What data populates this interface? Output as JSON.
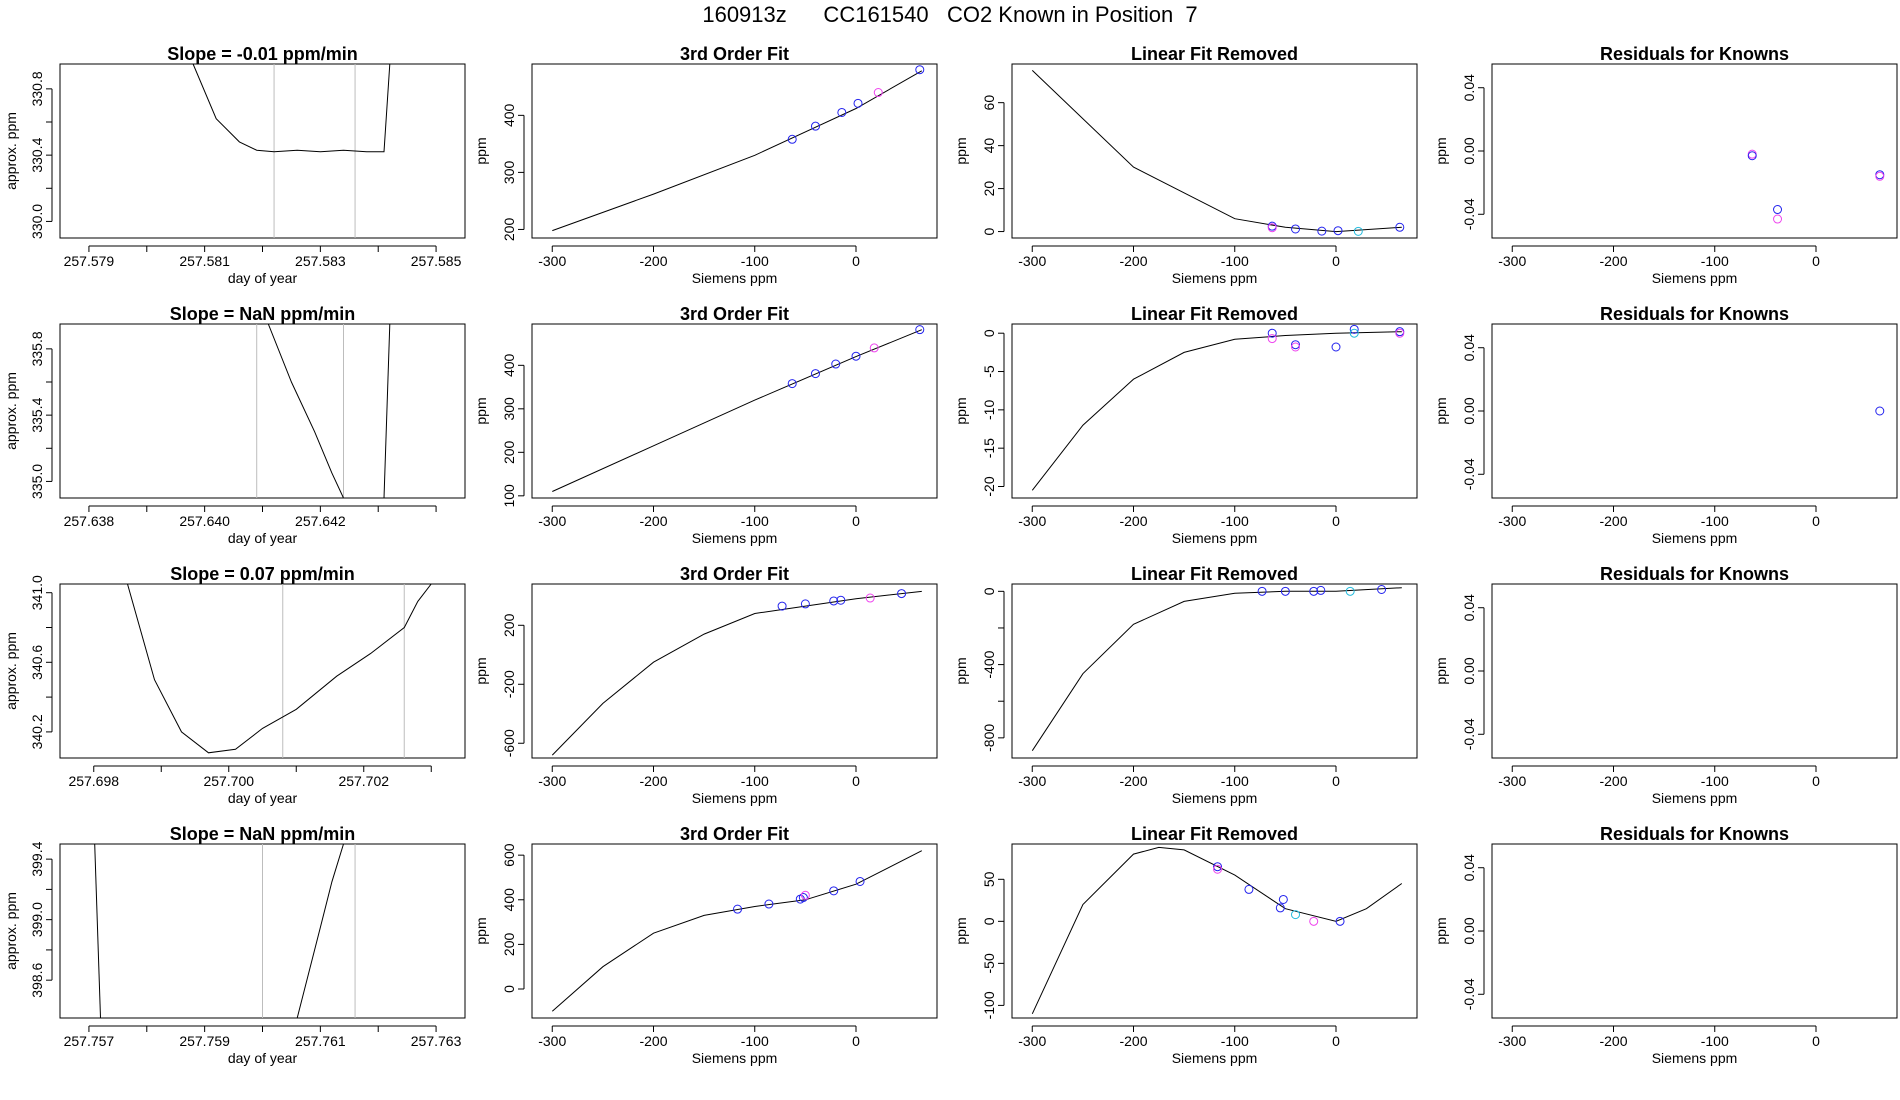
{
  "page": {
    "title": "160913z      CC161540   CO2 Known in Position  7"
  },
  "colors": {
    "axis": "#000000",
    "curve": "#000000",
    "vline": "#bdbdbd",
    "blue": "#2222ee",
    "magenta": "#ee44ee",
    "cyan": "#22bbdd"
  },
  "chart_data": [
    {
      "type": "line",
      "title": "Slope =  -0.01  ppm/min",
      "xlabel": "day of year",
      "ylabel": "approx. ppm",
      "xlim": [
        257.5785,
        257.5855
      ],
      "ylim": [
        329.9,
        330.95
      ],
      "xticks": [
        257.579,
        257.58,
        257.581,
        257.582,
        257.583,
        257.584,
        257.585
      ],
      "xtick_labels": [
        "257.579",
        "",
        "257.581",
        "",
        "257.583",
        "",
        "257.585"
      ],
      "yticks": [
        330.0,
        330.2,
        330.4,
        330.6,
        330.8
      ],
      "ytick_labels": [
        "330.0",
        "",
        "330.4",
        "",
        "330.8"
      ],
      "vlines": [
        257.5822,
        257.5836
      ],
      "x": [
        257.5808,
        257.5812,
        257.5816,
        257.5819,
        257.5822,
        257.5826,
        257.583,
        257.5834,
        257.5838,
        257.5841,
        257.5842
      ],
      "y": [
        330.95,
        330.62,
        330.48,
        330.43,
        330.42,
        330.43,
        330.42,
        330.43,
        330.42,
        330.42,
        330.95
      ],
      "points": []
    },
    {
      "type": "line",
      "title": "3rd Order Fit",
      "xlabel": "Siemens ppm",
      "ylabel": "ppm",
      "xlim": [
        -320,
        80
      ],
      "ylim": [
        185,
        490
      ],
      "xticks": [
        -300,
        -200,
        -100,
        0
      ],
      "xtick_labels": [
        "-300",
        "-200",
        "-100",
        "0"
      ],
      "yticks": [
        200,
        300,
        400
      ],
      "ytick_labels": [
        "200",
        "300",
        "400"
      ],
      "vlines": [],
      "x": [
        -300,
        -200,
        -100,
        0,
        65
      ],
      "y": [
        198,
        262,
        330,
        412,
        478
      ],
      "points": [
        {
          "x": -63,
          "y": 358,
          "c": "blue"
        },
        {
          "x": -40,
          "y": 381,
          "c": "blue"
        },
        {
          "x": -14,
          "y": 405,
          "c": "blue"
        },
        {
          "x": 2,
          "y": 421,
          "c": "blue"
        },
        {
          "x": 22,
          "y": 440,
          "c": "magenta"
        },
        {
          "x": 63,
          "y": 480,
          "c": "blue"
        }
      ]
    },
    {
      "type": "line",
      "title": "Linear Fit Removed",
      "xlabel": "Siemens ppm",
      "ylabel": "ppm",
      "xlim": [
        -320,
        80
      ],
      "ylim": [
        -3,
        78
      ],
      "xticks": [
        -300,
        -200,
        -100,
        0
      ],
      "xtick_labels": [
        "-300",
        "-200",
        "-100",
        "0"
      ],
      "yticks": [
        0,
        20,
        40,
        60
      ],
      "ytick_labels": [
        "0",
        "20",
        "40",
        "60"
      ],
      "vlines": [],
      "x": [
        -300,
        -200,
        -100,
        -50,
        0,
        65
      ],
      "y": [
        75,
        30,
        6,
        2,
        0,
        2
      ],
      "points": [
        {
          "x": -63,
          "y": 2.5,
          "c": "blue"
        },
        {
          "x": -63,
          "y": 1.8,
          "c": "magenta"
        },
        {
          "x": -40,
          "y": 1.2,
          "c": "blue"
        },
        {
          "x": -14,
          "y": 0.2,
          "c": "blue"
        },
        {
          "x": 2,
          "y": 0.4,
          "c": "blue"
        },
        {
          "x": 22,
          "y": 0.1,
          "c": "cyan"
        },
        {
          "x": 63,
          "y": 2,
          "c": "blue"
        }
      ]
    },
    {
      "type": "scatter",
      "title": "Residuals for Knowns",
      "xlabel": "Siemens ppm",
      "ylabel": "ppm",
      "xlim": [
        -320,
        80
      ],
      "ylim": [
        -0.055,
        0.055
      ],
      "xticks": [
        -300,
        -200,
        -100,
        0
      ],
      "xtick_labels": [
        "-300",
        "-200",
        "-100",
        "0"
      ],
      "yticks": [
        -0.04,
        0.0,
        0.04
      ],
      "ytick_labels": [
        "-0.04",
        "0.00",
        "0.04"
      ],
      "vlines": [],
      "x": [],
      "y": [],
      "points": [
        {
          "x": -63,
          "y": -0.002,
          "c": "magenta"
        },
        {
          "x": -63,
          "y": -0.003,
          "c": "blue"
        },
        {
          "x": -38,
          "y": -0.037,
          "c": "blue"
        },
        {
          "x": -38,
          "y": -0.043,
          "c": "magenta"
        },
        {
          "x": 63,
          "y": -0.015,
          "c": "blue"
        },
        {
          "x": 63,
          "y": -0.016,
          "c": "magenta"
        }
      ]
    },
    {
      "type": "line",
      "title": "Slope =  NaN  ppm/min",
      "xlabel": "day of year",
      "ylabel": "approx. ppm",
      "xlim": [
        257.6375,
        257.6445
      ],
      "ylim": [
        334.9,
        335.95
      ],
      "xticks": [
        257.638,
        257.639,
        257.64,
        257.641,
        257.642,
        257.643,
        257.644
      ],
      "xtick_labels": [
        "257.638",
        "",
        "257.640",
        "",
        "257.642",
        "",
        ""
      ],
      "yticks": [
        335.0,
        335.2,
        335.4,
        335.6,
        335.8
      ],
      "ytick_labels": [
        "335.0",
        "",
        "335.4",
        "",
        "335.8"
      ],
      "vlines": [
        257.6409,
        257.6424
      ],
      "x": [
        257.6411,
        257.6415,
        257.6419,
        257.6422,
        257.6424
      ],
      "y": [
        335.95,
        335.6,
        335.3,
        335.05,
        334.9
      ],
      "x2": [
        257.6431,
        257.6432
      ],
      "y2": [
        334.9,
        335.95
      ],
      "points": []
    },
    {
      "type": "line",
      "title": "3rd Order Fit",
      "xlabel": "Siemens ppm",
      "ylabel": "ppm",
      "xlim": [
        -320,
        80
      ],
      "ylim": [
        95,
        495
      ],
      "xticks": [
        -300,
        -200,
        -100,
        0
      ],
      "xtick_labels": [
        "-300",
        "-200",
        "-100",
        "0"
      ],
      "yticks": [
        100,
        200,
        300,
        400
      ],
      "ytick_labels": [
        "100",
        "200",
        "300",
        "400"
      ],
      "vlines": [],
      "x": [
        -300,
        -200,
        -100,
        0,
        65
      ],
      "y": [
        110,
        215,
        320,
        420,
        482
      ],
      "points": [
        {
          "x": -63,
          "y": 358,
          "c": "blue"
        },
        {
          "x": -40,
          "y": 381,
          "c": "blue"
        },
        {
          "x": -20,
          "y": 403,
          "c": "blue"
        },
        {
          "x": 0,
          "y": 421,
          "c": "blue"
        },
        {
          "x": 18,
          "y": 440,
          "c": "magenta"
        },
        {
          "x": 63,
          "y": 482,
          "c": "blue"
        }
      ]
    },
    {
      "type": "line",
      "title": "Linear Fit Removed",
      "xlabel": "Siemens ppm",
      "ylabel": "ppm",
      "xlim": [
        -320,
        80
      ],
      "ylim": [
        -21.5,
        1.2
      ],
      "xticks": [
        -300,
        -200,
        -100,
        0
      ],
      "xtick_labels": [
        "-300",
        "-200",
        "-100",
        "0"
      ],
      "yticks": [
        -20,
        -15,
        -10,
        -5,
        0
      ],
      "ytick_labels": [
        "-20",
        "-15",
        "-10",
        "-5",
        "0"
      ],
      "vlines": [],
      "x": [
        -300,
        -250,
        -200,
        -150,
        -100,
        -50,
        0,
        65
      ],
      "y": [
        -20.5,
        -12,
        -6,
        -2.5,
        -0.8,
        -0.3,
        0,
        0.2
      ],
      "points": [
        {
          "x": -63,
          "y": 0,
          "c": "blue"
        },
        {
          "x": -63,
          "y": -0.7,
          "c": "magenta"
        },
        {
          "x": -40,
          "y": -1.5,
          "c": "blue"
        },
        {
          "x": -40,
          "y": -1.8,
          "c": "magenta"
        },
        {
          "x": 0,
          "y": -1.8,
          "c": "blue"
        },
        {
          "x": 18,
          "y": 0.5,
          "c": "blue"
        },
        {
          "x": 18,
          "y": 0,
          "c": "cyan"
        },
        {
          "x": 63,
          "y": 0.2,
          "c": "blue"
        },
        {
          "x": 63,
          "y": 0,
          "c": "magenta"
        }
      ]
    },
    {
      "type": "scatter",
      "title": "Residuals for Knowns",
      "xlabel": "Siemens ppm",
      "ylabel": "ppm",
      "xlim": [
        -320,
        80
      ],
      "ylim": [
        -0.055,
        0.055
      ],
      "xticks": [
        -300,
        -200,
        -100,
        0
      ],
      "xtick_labels": [
        "-300",
        "-200",
        "-100",
        "0"
      ],
      "yticks": [
        -0.04,
        0.0,
        0.04
      ],
      "ytick_labels": [
        "-0.04",
        "0.00",
        "0.04"
      ],
      "vlines": [],
      "x": [],
      "y": [],
      "points": [
        {
          "x": 63,
          "y": 0.0,
          "c": "blue"
        }
      ]
    },
    {
      "type": "line",
      "title": "Slope =  0.07  ppm/min",
      "xlabel": "day of year",
      "ylabel": "approx. ppm",
      "xlim": [
        257.6975,
        257.7035
      ],
      "ylim": [
        340.05,
        341.05
      ],
      "xticks": [
        257.698,
        257.699,
        257.7,
        257.701,
        257.702,
        257.703
      ],
      "xtick_labels": [
        "257.698",
        "",
        "257.700",
        "",
        "257.702",
        ""
      ],
      "yticks": [
        340.2,
        340.4,
        340.6,
        340.8,
        341.0
      ],
      "ytick_labels": [
        "340.2",
        "",
        "340.6",
        "",
        "341.0"
      ],
      "vlines": [
        257.7008,
        257.7026
      ],
      "x": [
        257.6985,
        257.6989,
        257.6993,
        257.6997,
        257.7001,
        257.7005,
        257.701,
        257.7016,
        257.7021,
        257.7026,
        257.7028,
        257.703
      ],
      "y": [
        341.05,
        340.5,
        340.2,
        340.08,
        340.1,
        340.22,
        340.33,
        340.52,
        340.65,
        340.8,
        340.95,
        341.05
      ],
      "points": []
    },
    {
      "type": "line",
      "title": "3rd Order Fit",
      "xlabel": "Siemens ppm",
      "ylabel": "ppm",
      "xlim": [
        -320,
        80
      ],
      "ylim": [
        -700,
        480
      ],
      "xticks": [
        -300,
        -200,
        -100,
        0
      ],
      "xtick_labels": [
        "-300",
        "-200",
        "-100",
        "0"
      ],
      "yticks": [
        -600,
        -200,
        200
      ],
      "ytick_labels": [
        "-600",
        "-200",
        "200"
      ],
      "vlines": [],
      "x": [
        -300,
        -250,
        -200,
        -150,
        -100,
        -50,
        0,
        65
      ],
      "y": [
        -680,
        -330,
        -50,
        140,
        280,
        330,
        380,
        430
      ],
      "points": [
        {
          "x": -73,
          "y": 330,
          "c": "blue"
        },
        {
          "x": -50,
          "y": 345,
          "c": "blue"
        },
        {
          "x": -22,
          "y": 365,
          "c": "blue"
        },
        {
          "x": -15,
          "y": 370,
          "c": "blue"
        },
        {
          "x": 14,
          "y": 385,
          "c": "magenta"
        },
        {
          "x": 45,
          "y": 415,
          "c": "blue"
        }
      ]
    },
    {
      "type": "line",
      "title": "Linear Fit Removed",
      "xlabel": "Siemens ppm",
      "ylabel": "ppm",
      "xlim": [
        -320,
        80
      ],
      "ylim": [
        -910,
        40
      ],
      "xticks": [
        -300,
        -200,
        -100,
        0
      ],
      "xtick_labels": [
        "-300",
        "-200",
        "-100",
        "0"
      ],
      "yticks": [
        -800,
        -600,
        -400,
        -200,
        0
      ],
      "ytick_labels": [
        "-800",
        "",
        "-400",
        "",
        "0"
      ],
      "vlines": [],
      "x": [
        -300,
        -250,
        -200,
        -150,
        -100,
        -50,
        0,
        65
      ],
      "y": [
        -870,
        -450,
        -180,
        -55,
        -10,
        0,
        0,
        20
      ],
      "points": [
        {
          "x": -73,
          "y": 0,
          "c": "blue"
        },
        {
          "x": -50,
          "y": 0,
          "c": "blue"
        },
        {
          "x": -22,
          "y": 0,
          "c": "blue"
        },
        {
          "x": -15,
          "y": 5,
          "c": "blue"
        },
        {
          "x": 14,
          "y": 0,
          "c": "cyan"
        },
        {
          "x": 45,
          "y": 10,
          "c": "blue"
        }
      ]
    },
    {
      "type": "scatter",
      "title": "Residuals for Knowns",
      "xlabel": "Siemens ppm",
      "ylabel": "ppm",
      "xlim": [
        -320,
        80
      ],
      "ylim": [
        -0.055,
        0.055
      ],
      "xticks": [
        -300,
        -200,
        -100,
        0
      ],
      "xtick_labels": [
        "-300",
        "-200",
        "-100",
        "0"
      ],
      "yticks": [
        -0.04,
        0.0,
        0.04
      ],
      "ytick_labels": [
        "-0.04",
        "0.00",
        "0.04"
      ],
      "vlines": [],
      "x": [],
      "y": [],
      "points": []
    },
    {
      "type": "line",
      "title": "Slope =  NaN  ppm/min",
      "xlabel": "day of year",
      "ylabel": "approx. ppm",
      "xlim": [
        257.7565,
        257.7635
      ],
      "ylim": [
        398.35,
        399.5
      ],
      "xticks": [
        257.757,
        257.758,
        257.759,
        257.76,
        257.761,
        257.762,
        257.763
      ],
      "xtick_labels": [
        "257.757",
        "",
        "257.759",
        "",
        "257.761",
        "",
        "257.763"
      ],
      "yticks": [
        398.6,
        398.8,
        399.0,
        399.2,
        399.4
      ],
      "ytick_labels": [
        "398.6",
        "",
        "399.0",
        "",
        "399.4"
      ],
      "vlines": [
        257.76,
        257.7616
      ],
      "x": [
        257.7606,
        257.7608,
        257.761,
        257.7612,
        257.7614
      ],
      "y": [
        398.35,
        398.65,
        398.95,
        399.25,
        399.5
      ],
      "x2": [
        257.7571,
        257.7572
      ],
      "y2": [
        399.5,
        398.35
      ],
      "points": []
    },
    {
      "type": "line",
      "title": "3rd Order Fit",
      "xlabel": "Siemens ppm",
      "ylabel": "ppm",
      "xlim": [
        -320,
        80
      ],
      "ylim": [
        -130,
        650
      ],
      "xticks": [
        -300,
        -200,
        -100,
        0
      ],
      "xtick_labels": [
        "-300",
        "-200",
        "-100",
        "0"
      ],
      "yticks": [
        0,
        200,
        400,
        600
      ],
      "ytick_labels": [
        "0",
        "200",
        "400",
        "600"
      ],
      "vlines": [],
      "x": [
        -300,
        -250,
        -200,
        -150,
        -100,
        -50,
        0,
        65
      ],
      "y": [
        -100,
        100,
        250,
        330,
        370,
        400,
        470,
        620
      ],
      "points": [
        {
          "x": -117,
          "y": 358,
          "c": "blue"
        },
        {
          "x": -86,
          "y": 381,
          "c": "blue"
        },
        {
          "x": -55,
          "y": 403,
          "c": "blue"
        },
        {
          "x": -52,
          "y": 410,
          "c": "blue"
        },
        {
          "x": -50,
          "y": 420,
          "c": "magenta"
        },
        {
          "x": -22,
          "y": 440,
          "c": "blue"
        },
        {
          "x": 4,
          "y": 482,
          "c": "blue"
        }
      ]
    },
    {
      "type": "line",
      "title": "Linear Fit Removed",
      "xlabel": "Siemens ppm",
      "ylabel": "ppm",
      "xlim": [
        -320,
        80
      ],
      "ylim": [
        -115,
        92
      ],
      "xticks": [
        -300,
        -200,
        -100,
        0
      ],
      "xtick_labels": [
        "-300",
        "-200",
        "-100",
        "0"
      ],
      "yticks": [
        -100,
        -50,
        0,
        50
      ],
      "ytick_labels": [
        "-100",
        "-50",
        "0",
        "50"
      ],
      "vlines": [],
      "x": [
        -300,
        -250,
        -200,
        -175,
        -150,
        -100,
        -50,
        0,
        30,
        65
      ],
      "y": [
        -110,
        20,
        80,
        88,
        85,
        55,
        15,
        0,
        15,
        45
      ],
      "points": [
        {
          "x": -117,
          "y": 65,
          "c": "blue"
        },
        {
          "x": -117,
          "y": 62,
          "c": "magenta"
        },
        {
          "x": -86,
          "y": 38,
          "c": "blue"
        },
        {
          "x": -55,
          "y": 16,
          "c": "blue"
        },
        {
          "x": -52,
          "y": 26,
          "c": "blue"
        },
        {
          "x": -40,
          "y": 8,
          "c": "cyan"
        },
        {
          "x": -22,
          "y": 0,
          "c": "magenta"
        },
        {
          "x": 4,
          "y": 0,
          "c": "blue"
        }
      ]
    },
    {
      "type": "scatter",
      "title": "Residuals for Knowns",
      "xlabel": "Siemens ppm",
      "ylabel": "ppm",
      "xlim": [
        -320,
        80
      ],
      "ylim": [
        -0.055,
        0.055
      ],
      "xticks": [
        -300,
        -200,
        -100,
        0
      ],
      "xtick_labels": [
        "-300",
        "-200",
        "-100",
        "0"
      ],
      "yticks": [
        -0.04,
        0.0,
        0.04
      ],
      "ytick_labels": [
        "-0.04",
        "0.00",
        "0.04"
      ],
      "vlines": [],
      "x": [],
      "y": [],
      "points": []
    }
  ]
}
